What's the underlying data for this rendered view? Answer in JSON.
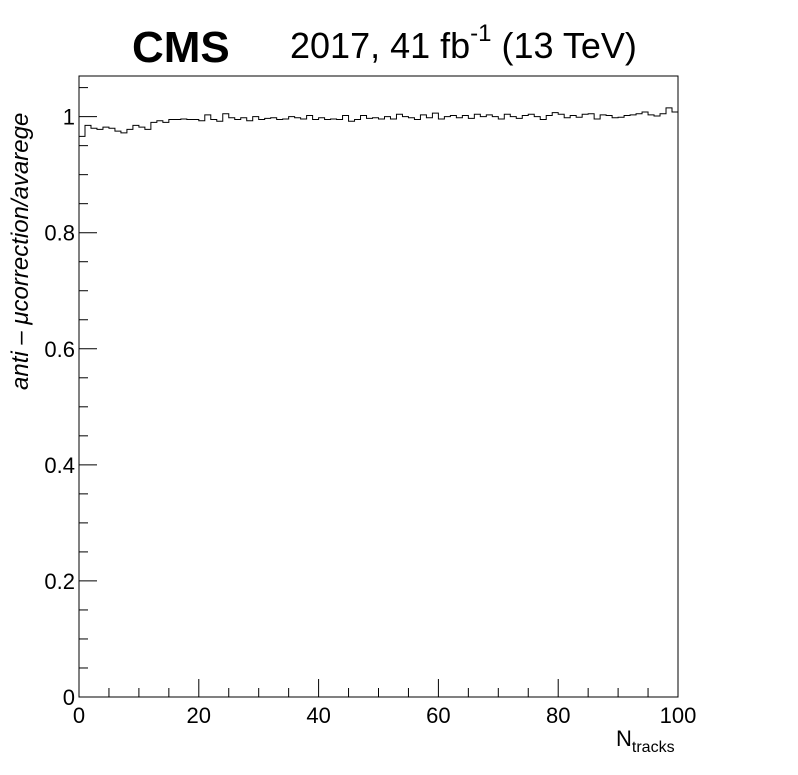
{
  "chart_data": {
    "type": "line",
    "style": "step-histogram",
    "experiment_label": "CMS",
    "lumi_label": {
      "prefix": "2017, 41 fb",
      "superscript": "-1",
      "suffix": " (13 TeV)"
    },
    "xlabel": {
      "main": "N",
      "subscript": "tracks"
    },
    "ylabel": "anti – μcorrection/avarege",
    "xlim": [
      0,
      100
    ],
    "ylim": [
      0,
      1.07
    ],
    "x_ticks": [
      "0",
      "20",
      "40",
      "60",
      "80",
      "100"
    ],
    "y_ticks": [
      "0",
      "0.2",
      "0.4",
      "0.6",
      "0.8",
      "1"
    ],
    "bin_width": 1,
    "values": [
      0.966,
      0.985,
      0.98,
      0.978,
      0.982,
      0.98,
      0.975,
      0.972,
      0.978,
      0.985,
      0.982,
      0.978,
      0.99,
      0.993,
      0.99,
      0.995,
      0.995,
      0.996,
      0.995,
      0.995,
      0.993,
      1.003,
      0.995,
      0.992,
      1.005,
      0.998,
      0.995,
      0.998,
      0.993,
      1.0,
      0.995,
      0.997,
      0.998,
      0.995,
      0.996,
      1.0,
      0.998,
      0.996,
      1.002,
      0.995,
      0.998,
      0.995,
      0.996,
      0.995,
      1.002,
      0.992,
      0.995,
      1.002,
      0.997,
      0.998,
      0.996,
      1.0,
      0.996,
      1.004,
      1.0,
      0.998,
      0.995,
      1.003,
      0.998,
      1.006,
      0.996,
      1.0,
      1.002,
      0.998,
      1.002,
      0.997,
      1.004,
      1.0,
      1.003,
      1.0,
      0.996,
      1.004,
      1.0,
      0.997,
      1.002,
      1.004,
      1.0,
      0.995,
      1.002,
      1.007,
      1.004,
      0.998,
      1.002,
      0.999,
      1.004,
      1.005,
      0.996,
      1.003,
      1.002,
      0.998,
      0.999,
      1.002,
      1.003,
      1.005,
      1.008,
      1.003,
      1.001,
      1.005,
      1.015,
      1.008
    ]
  }
}
